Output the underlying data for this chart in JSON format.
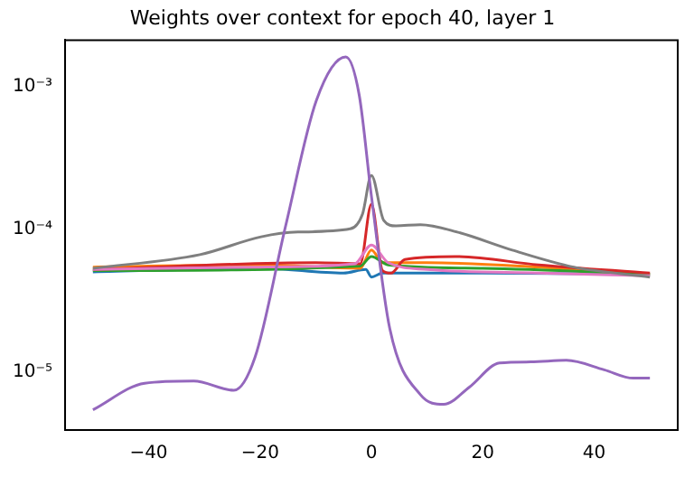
{
  "chart_data": {
    "type": "line",
    "title": "Weights over context for epoch 40, layer 1",
    "log": "y",
    "grid": false,
    "legend": false,
    "marker": "none",
    "line_style": "solid",
    "xlim": [
      -55,
      55
    ],
    "xticks": [
      {
        "value": -40,
        "label": "−40"
      },
      {
        "value": -20,
        "label": "−20"
      },
      0,
      20,
      40
    ],
    "ylim": [
      3.9e-06,
      0.0021
    ],
    "yticks": [
      {
        "value": 1e-05,
        "label": "10⁻⁵"
      },
      {
        "value": 0.0001,
        "label": "10⁻⁴"
      },
      {
        "value": 0.001,
        "label": "10⁻³"
      }
    ],
    "series": [
      {
        "color": "#1f77b4",
        "x": [
          -50,
          -20,
          -5,
          -1,
          0,
          2,
          20,
          50
        ],
        "values": [
          5e-05,
          5.3e-05,
          4.9e-05,
          5.2e-05,
          4.6e-05,
          4.9e-05,
          4.9e-05,
          4.8e-05
        ]
      },
      {
        "color": "#ff7f0e",
        "x": [
          -50,
          -20,
          -2,
          0,
          2,
          10,
          30,
          50
        ],
        "values": [
          5.4e-05,
          5.6e-05,
          5.3e-05,
          7.1e-05,
          5.8e-05,
          5.8e-05,
          5.4e-05,
          4.8e-05
        ]
      },
      {
        "color": "#2ca02c",
        "x": [
          -50,
          -2,
          0,
          3,
          20,
          50
        ],
        "values": [
          5.1e-05,
          5.5e-05,
          6.4e-05,
          5.6e-05,
          5.3e-05,
          4.8e-05
        ]
      },
      {
        "color": "#d62728",
        "x": [
          -50,
          -10,
          -2,
          0,
          2,
          3.5,
          6,
          15,
          30,
          50
        ],
        "values": [
          5.2e-05,
          5.8e-05,
          5.7e-05,
          0.000149,
          5.1e-05,
          4.9e-05,
          6.1e-05,
          6.4e-05,
          5.6e-05,
          4.9e-05
        ]
      },
      {
        "color": "#e377c2",
        "x": [
          -50,
          -20,
          -3,
          0,
          3,
          10,
          30,
          50
        ],
        "values": [
          5.2e-05,
          5.4e-05,
          5.7e-05,
          7.7e-05,
          5.8e-05,
          5.2e-05,
          4.9e-05,
          4.7e-05
        ]
      },
      {
        "color": "#7f7f7f",
        "x": [
          -50,
          -30.8,
          -19.8,
          -13.2,
          -3.8,
          -1.6,
          0,
          2.2,
          4.4,
          8.8,
          15.4,
          25.3,
          36.3,
          50
        ],
        "values": [
          5.3e-05,
          6.6e-05,
          8.8e-05,
          9.5e-05,
          0.0001,
          0.000127,
          0.000237,
          0.000115,
          0.000105,
          0.000107,
          9.5e-05,
          7.1e-05,
          5.4e-05,
          4.6e-05
        ]
      },
      {
        "color": "#9467bd",
        "x": [
          -50,
          -40.7,
          -31.9,
          -24.7,
          -20.9,
          -15.4,
          -9.9,
          -4.6,
          -2.2,
          0,
          3.3,
          8.8,
          13,
          17.6,
          23,
          28.6,
          35,
          41.8,
          47,
          50
        ],
        "values": [
          5.4e-06,
          8.3e-06,
          8.6e-06,
          7.4e-06,
          1.26e-05,
          0.000105,
          0.00079,
          0.0016,
          0.00087,
          0.00017,
          2e-05,
          6.9e-06,
          5.9e-06,
          7.8e-06,
          1.15e-05,
          1.17e-05,
          1.2e-05,
          1.03e-05,
          9e-06,
          9e-06
        ]
      }
    ]
  }
}
